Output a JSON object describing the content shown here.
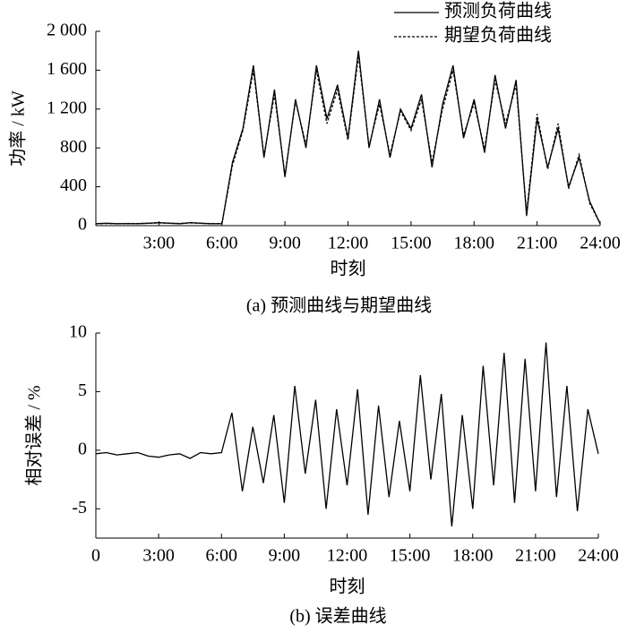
{
  "chart_data": [
    {
      "type": "line",
      "xlabel": "时刻",
      "ylabel": "功率 / kW",
      "caption": "(a)  预测曲线与期望曲线",
      "x": [
        0,
        0.5,
        1,
        1.5,
        2,
        2.5,
        3,
        3.5,
        4,
        4.5,
        5,
        5.5,
        6,
        6.5,
        7,
        7.5,
        8,
        8.5,
        9,
        9.5,
        10,
        10.5,
        11,
        11.5,
        12,
        12.5,
        13,
        13.5,
        14,
        14.5,
        15,
        15.5,
        16,
        16.5,
        17,
        17.5,
        18,
        18.5,
        19,
        19.5,
        20,
        20.5,
        21,
        21.5,
        22,
        22.5,
        23,
        23.5,
        24
      ],
      "series": [
        {
          "name": "预测负荷曲线",
          "color": "#000000",
          "dash": "solid",
          "values": [
            20,
            25,
            20,
            22,
            20,
            25,
            30,
            25,
            20,
            30,
            25,
            20,
            20,
            650,
            1000,
            1650,
            700,
            1400,
            500,
            1300,
            800,
            1650,
            1100,
            1450,
            900,
            1800,
            800,
            1300,
            700,
            1200,
            1000,
            1350,
            600,
            1250,
            1650,
            900,
            1300,
            750,
            1550,
            1000,
            1500,
            100,
            1100,
            600,
            1000,
            400,
            700,
            250,
            20
          ]
        },
        {
          "name": "期望负荷曲线",
          "color": "#000000",
          "dash": "dashed",
          "values": [
            18,
            22,
            20,
            20,
            22,
            24,
            28,
            25,
            22,
            28,
            24,
            20,
            20,
            620,
            980,
            1600,
            720,
            1350,
            520,
            1280,
            830,
            1600,
            1050,
            1400,
            880,
            1750,
            820,
            1250,
            730,
            1180,
            980,
            1300,
            650,
            1200,
            1600,
            930,
            1260,
            790,
            1500,
            1050,
            1450,
            130,
            1150,
            580,
            1050,
            380,
            730,
            230,
            20
          ]
        }
      ],
      "xlim": [
        0,
        24
      ],
      "xticks": [
        {
          "value": 3,
          "label": "3:00"
        },
        {
          "value": 6,
          "label": "6:00"
        },
        {
          "value": 9,
          "label": "9:00"
        },
        {
          "value": 12,
          "label": "12:00"
        },
        {
          "value": 15,
          "label": "15:00"
        },
        {
          "value": 18,
          "label": "18:00"
        },
        {
          "value": 21,
          "label": "21:00"
        },
        {
          "value": 24,
          "label": "24:00"
        }
      ],
      "ylim": [
        0,
        2000
      ],
      "yticks": [
        0,
        400,
        800,
        {
          "value": 1200,
          "label": "1 200"
        },
        {
          "value": 1600,
          "label": "1 600"
        },
        {
          "value": 2000,
          "label": "2 000"
        }
      ],
      "legend": "upper right"
    },
    {
      "type": "line",
      "xlabel": "时刻",
      "ylabel": "相对误差 / %",
      "caption": "(b)  误差曲线",
      "x": [
        0,
        0.5,
        1,
        1.5,
        2,
        2.5,
        3,
        3.5,
        4,
        4.5,
        5,
        5.5,
        6,
        6.5,
        7,
        7.5,
        8,
        8.5,
        9,
        9.5,
        10,
        10.5,
        11,
        11.5,
        12,
        12.5,
        13,
        13.5,
        14,
        14.5,
        15,
        15.5,
        16,
        16.5,
        17,
        17.5,
        18,
        18.5,
        19,
        19.5,
        20,
        20.5,
        21,
        21.5,
        22,
        22.5,
        23,
        23.5,
        24
      ],
      "series": [
        {
          "color": "#000000",
          "dash": "solid",
          "values": [
            -0.3,
            -0.2,
            -0.4,
            -0.3,
            -0.2,
            -0.5,
            -0.6,
            -0.4,
            -0.3,
            -0.7,
            -0.2,
            -0.3,
            -0.2,
            3.2,
            -3.5,
            2.0,
            -2.8,
            3.0,
            -4.5,
            5.5,
            -2.0,
            4.3,
            -5.0,
            3.5,
            -3.0,
            5.2,
            -5.5,
            3.8,
            -4.0,
            2.5,
            -3.5,
            6.4,
            -2.5,
            4.8,
            -6.5,
            3.0,
            -5.0,
            7.2,
            -3.0,
            8.3,
            -4.5,
            7.8,
            -3.5,
            9.2,
            -4.0,
            5.5,
            -5.2,
            3.5,
            -0.3
          ]
        }
      ],
      "xlim": [
        0,
        24
      ],
      "xticks": [
        0,
        {
          "value": 3,
          "label": "3:00"
        },
        {
          "value": 6,
          "label": "6:00"
        },
        {
          "value": 9,
          "label": "9:00"
        },
        {
          "value": 12,
          "label": "12:00"
        },
        {
          "value": 15,
          "label": "15:00"
        },
        {
          "value": 18,
          "label": "18:00"
        },
        {
          "value": 21,
          "label": "21:00"
        },
        {
          "value": 24,
          "label": "24:00"
        }
      ],
      "ylim": [
        -7.5,
        10
      ],
      "yticks": [
        -5,
        0,
        5,
        10
      ]
    }
  ]
}
